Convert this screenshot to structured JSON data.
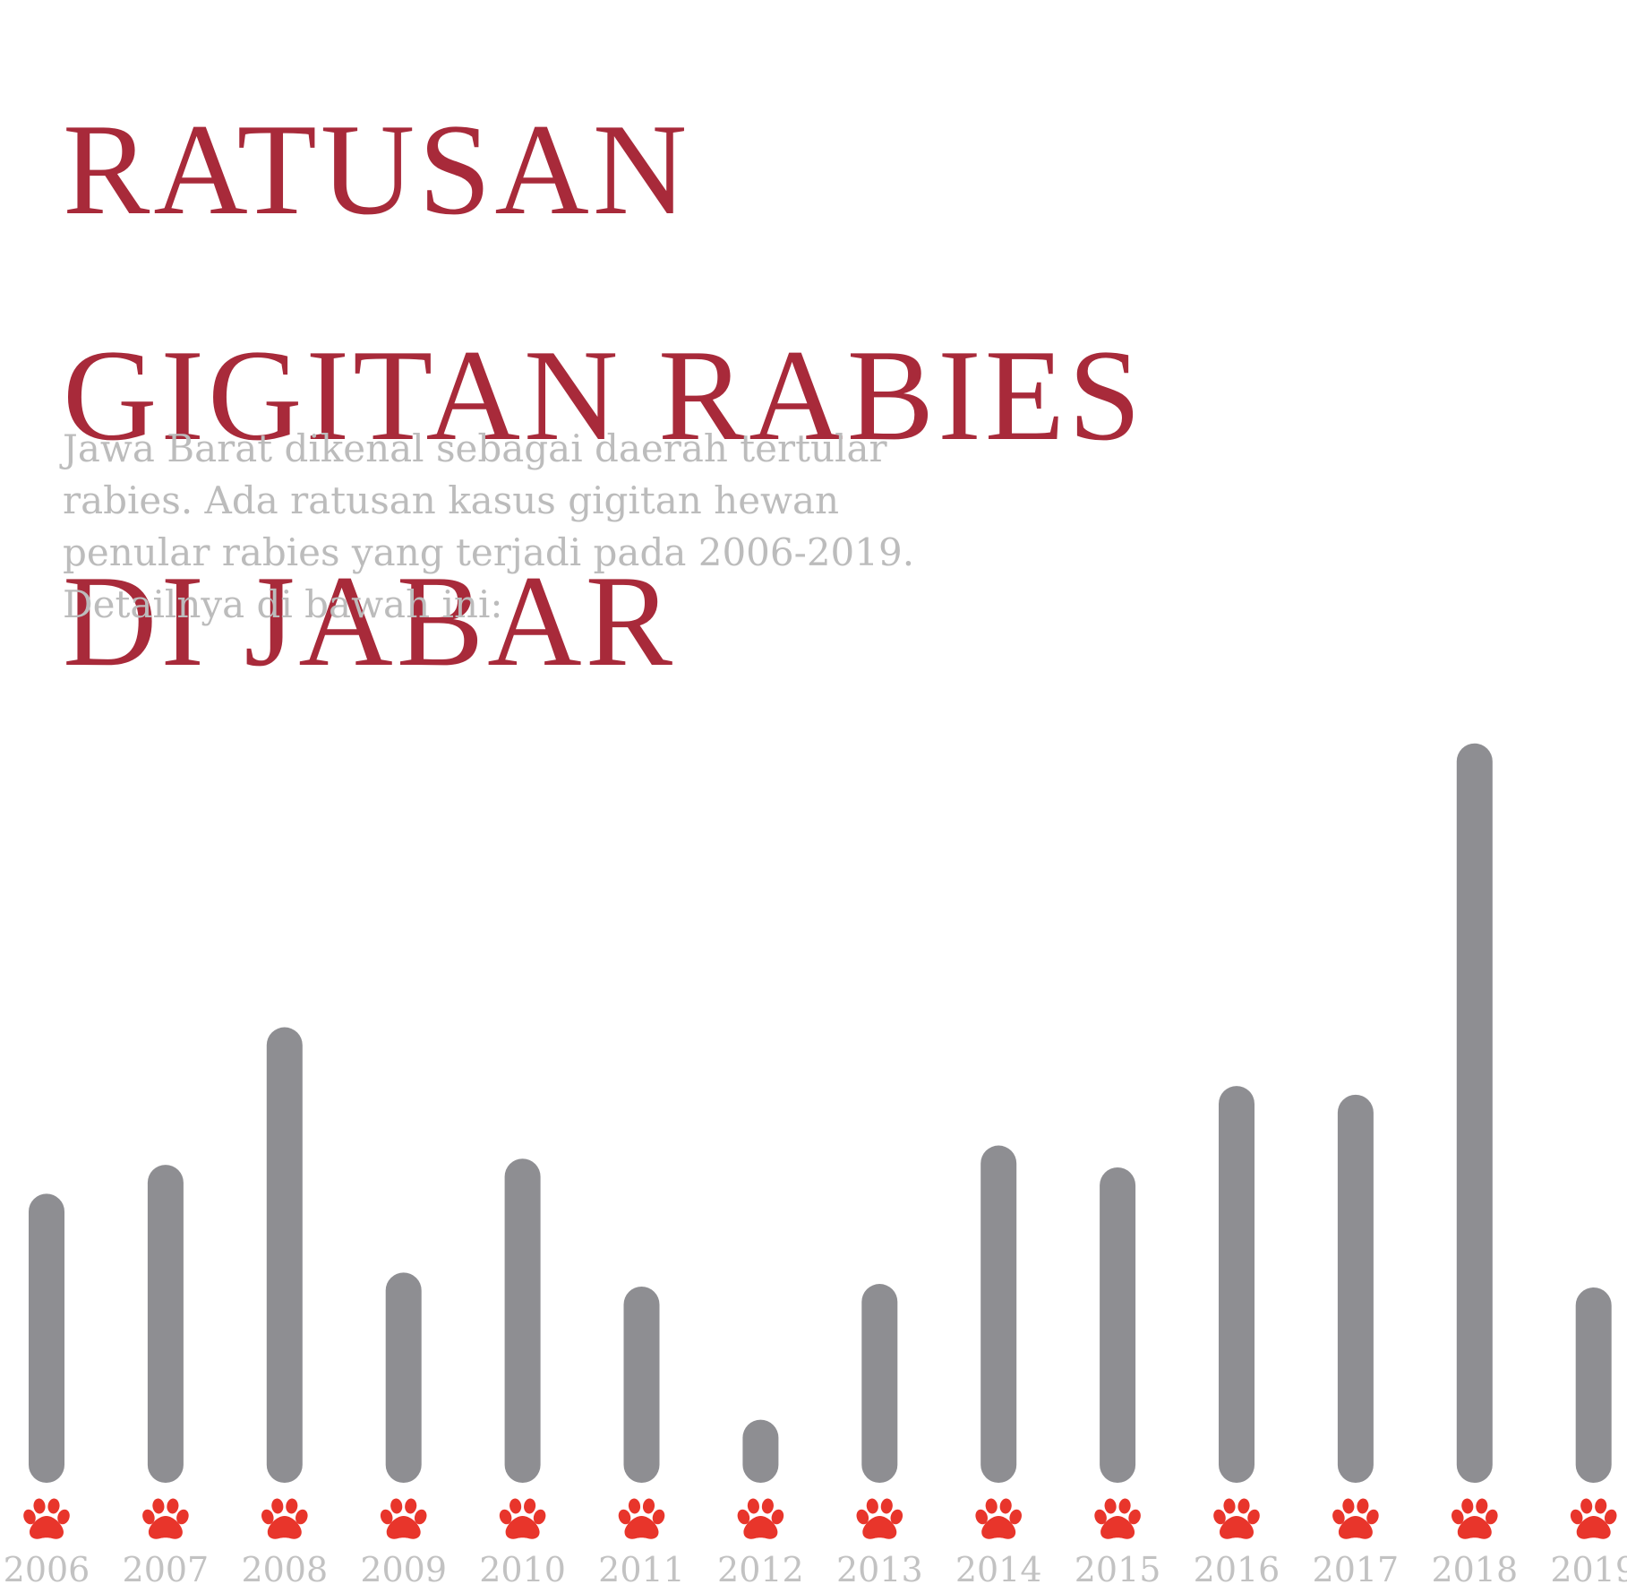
{
  "title_lines": [
    "RATUSAN",
    "GIGITAN RABIES",
    "DI JABAR"
  ],
  "intro_lines": [
    "Jawa Barat dikenal sebagai daerah tertular",
    "rabies. Ada ratusan kasus gigitan hewan",
    "penular rabies yang terjadi pada 2006-2019.",
    "Detailnya di bawah ini:"
  ],
  "colors": {
    "title": "#a82a3a",
    "intro": "#bcbcbc",
    "bar": "#8e8e92",
    "paw": "#e8352b",
    "year": "#c2c2c2"
  },
  "chart_data": {
    "type": "bar",
    "categories": [
      "2006",
      "2007",
      "2008",
      "2009",
      "2010",
      "2011",
      "2012",
      "2013",
      "2014",
      "2015",
      "2016",
      "2017",
      "2018",
      "2019"
    ],
    "values": [
      33,
      36.3,
      52,
      24,
      37,
      22.4,
      7.2,
      22.7,
      38.5,
      36,
      45.3,
      44.3,
      84.4,
      22.3
    ],
    "ylim": [
      0,
      90
    ],
    "grid": false,
    "bar_shape": "rounded",
    "marker_icon": "paw-icon",
    "title": "",
    "xlabel": "",
    "ylabel": ""
  }
}
